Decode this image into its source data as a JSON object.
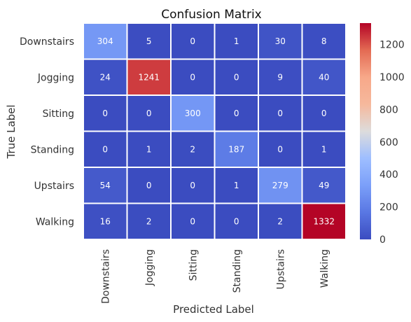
{
  "chart_data": {
    "type": "heatmap",
    "title": "Confusion Matrix",
    "xlabel": "Predicted Label",
    "ylabel": "True Label",
    "x_categories": [
      "Downstairs",
      "Jogging",
      "Sitting",
      "Standing",
      "Upstairs",
      "Walking"
    ],
    "y_categories": [
      "Downstairs",
      "Jogging",
      "Sitting",
      "Standing",
      "Upstairs",
      "Walking"
    ],
    "values": [
      [
        304,
        5,
        0,
        1,
        30,
        8
      ],
      [
        24,
        1241,
        0,
        0,
        9,
        40
      ],
      [
        0,
        0,
        300,
        0,
        0,
        0
      ],
      [
        0,
        1,
        2,
        187,
        0,
        1
      ],
      [
        54,
        0,
        0,
        1,
        279,
        49
      ],
      [
        16,
        2,
        0,
        0,
        2,
        1332
      ]
    ],
    "colormap": "coolwarm",
    "colorbar": {
      "range": [
        0,
        1332
      ],
      "ticks": [
        0,
        200,
        400,
        600,
        800,
        1000,
        1200
      ]
    },
    "annotations": true
  }
}
